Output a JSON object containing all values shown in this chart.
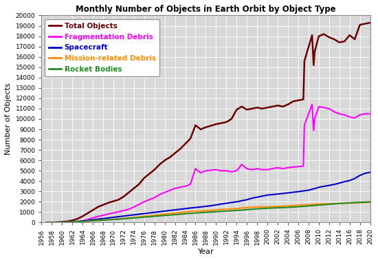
{
  "title": "Monthly Number of Objects in Earth Orbit by Object Type",
  "xlabel": "Year",
  "ylabel": "Number of Objects",
  "xlim": [
    1956,
    2020
  ],
  "ylim": [
    0,
    20000
  ],
  "yticks": [
    0,
    1000,
    2000,
    3000,
    4000,
    5000,
    6000,
    7000,
    8000,
    9000,
    10000,
    11000,
    12000,
    13000,
    14000,
    15000,
    16000,
    17000,
    18000,
    19000,
    20000
  ],
  "xticks": [
    1956,
    1958,
    1960,
    1962,
    1964,
    1966,
    1968,
    1970,
    1972,
    1974,
    1976,
    1978,
    1980,
    1982,
    1984,
    1986,
    1988,
    1990,
    1992,
    1994,
    1996,
    1998,
    2000,
    2002,
    2004,
    2006,
    2008,
    2010,
    2012,
    2014,
    2016,
    2018,
    2020
  ],
  "series": {
    "Total Objects": {
      "color": "#6B0000",
      "linewidth": 1.8,
      "data": [
        [
          1957,
          0
        ],
        [
          1958,
          5
        ],
        [
          1959,
          30
        ],
        [
          1960,
          60
        ],
        [
          1961,
          100
        ],
        [
          1962,
          200
        ],
        [
          1963,
          350
        ],
        [
          1964,
          600
        ],
        [
          1965,
          900
        ],
        [
          1966,
          1200
        ],
        [
          1967,
          1500
        ],
        [
          1968,
          1700
        ],
        [
          1969,
          1900
        ],
        [
          1970,
          2050
        ],
        [
          1971,
          2200
        ],
        [
          1972,
          2500
        ],
        [
          1973,
          2900
        ],
        [
          1974,
          3300
        ],
        [
          1975,
          3700
        ],
        [
          1976,
          4300
        ],
        [
          1977,
          4700
        ],
        [
          1978,
          5100
        ],
        [
          1979,
          5600
        ],
        [
          1980,
          6000
        ],
        [
          1981,
          6300
        ],
        [
          1982,
          6700
        ],
        [
          1983,
          7100
        ],
        [
          1984,
          7600
        ],
        [
          1985,
          8100
        ],
        [
          1986,
          9400
        ],
        [
          1987,
          9000
        ],
        [
          1988,
          9200
        ],
        [
          1989,
          9350
        ],
        [
          1990,
          9500
        ],
        [
          1991,
          9600
        ],
        [
          1992,
          9700
        ],
        [
          1993,
          10000
        ],
        [
          1994,
          10900
        ],
        [
          1995,
          11200
        ],
        [
          1996,
          10900
        ],
        [
          1997,
          11000
        ],
        [
          1998,
          11100
        ],
        [
          1999,
          11000
        ],
        [
          2000,
          11100
        ],
        [
          2001,
          11200
        ],
        [
          2002,
          11300
        ],
        [
          2003,
          11200
        ],
        [
          2004,
          11400
        ],
        [
          2005,
          11700
        ],
        [
          2006,
          11800
        ],
        [
          2007,
          11900
        ],
        [
          2007.2,
          15600
        ],
        [
          2008.7,
          18100
        ],
        [
          2009.0,
          15200
        ],
        [
          2009.2,
          16500
        ],
        [
          2010,
          18000
        ],
        [
          2011,
          18200
        ],
        [
          2012,
          17900
        ],
        [
          2013,
          17700
        ],
        [
          2014,
          17400
        ],
        [
          2015,
          17500
        ],
        [
          2016,
          18100
        ],
        [
          2017,
          17700
        ],
        [
          2018,
          19100
        ],
        [
          2019,
          19200
        ],
        [
          2020,
          19300
        ]
      ]
    },
    "Fragmentation Debris": {
      "color": "#FF00FF",
      "linewidth": 1.5,
      "data": [
        [
          1957,
          0
        ],
        [
          1958,
          0
        ],
        [
          1959,
          0
        ],
        [
          1960,
          0
        ],
        [
          1961,
          5
        ],
        [
          1962,
          30
        ],
        [
          1963,
          80
        ],
        [
          1964,
          150
        ],
        [
          1965,
          280
        ],
        [
          1966,
          450
        ],
        [
          1967,
          580
        ],
        [
          1968,
          700
        ],
        [
          1969,
          820
        ],
        [
          1970,
          930
        ],
        [
          1971,
          1030
        ],
        [
          1972,
          1150
        ],
        [
          1973,
          1280
        ],
        [
          1974,
          1500
        ],
        [
          1975,
          1750
        ],
        [
          1976,
          2000
        ],
        [
          1977,
          2200
        ],
        [
          1978,
          2400
        ],
        [
          1979,
          2700
        ],
        [
          1980,
          2900
        ],
        [
          1981,
          3100
        ],
        [
          1982,
          3300
        ],
        [
          1983,
          3400
        ],
        [
          1984,
          3500
        ],
        [
          1985,
          3700
        ],
        [
          1986,
          5200
        ],
        [
          1987,
          4800
        ],
        [
          1988,
          5000
        ],
        [
          1989,
          5050
        ],
        [
          1990,
          5100
        ],
        [
          1991,
          5000
        ],
        [
          1992,
          5000
        ],
        [
          1993,
          4900
        ],
        [
          1994,
          5000
        ],
        [
          1995,
          5600
        ],
        [
          1996,
          5200
        ],
        [
          1997,
          5100
        ],
        [
          1998,
          5200
        ],
        [
          1999,
          5100
        ],
        [
          2000,
          5100
        ],
        [
          2001,
          5200
        ],
        [
          2002,
          5300
        ],
        [
          2003,
          5200
        ],
        [
          2004,
          5300
        ],
        [
          2005,
          5350
        ],
        [
          2006,
          5400
        ],
        [
          2007,
          5450
        ],
        [
          2007.2,
          9400
        ],
        [
          2008.7,
          11400
        ],
        [
          2009.0,
          8900
        ],
        [
          2009.2,
          10000
        ],
        [
          2010,
          11200
        ],
        [
          2011,
          11100
        ],
        [
          2012,
          11000
        ],
        [
          2013,
          10700
        ],
        [
          2014,
          10500
        ],
        [
          2015,
          10400
        ],
        [
          2016,
          10200
        ],
        [
          2017,
          10100
        ],
        [
          2018,
          10400
        ],
        [
          2019,
          10500
        ],
        [
          2020,
          10500
        ]
      ]
    },
    "Spacecraft": {
      "color": "#0000CC",
      "linewidth": 1.5,
      "data": [
        [
          1957,
          0
        ],
        [
          1958,
          2
        ],
        [
          1959,
          5
        ],
        [
          1960,
          15
        ],
        [
          1961,
          30
        ],
        [
          1962,
          60
        ],
        [
          1963,
          100
        ],
        [
          1964,
          150
        ],
        [
          1965,
          200
        ],
        [
          1966,
          260
        ],
        [
          1967,
          320
        ],
        [
          1968,
          380
        ],
        [
          1969,
          440
        ],
        [
          1970,
          500
        ],
        [
          1971,
          560
        ],
        [
          1972,
          620
        ],
        [
          1973,
          680
        ],
        [
          1974,
          740
        ],
        [
          1975,
          800
        ],
        [
          1976,
          860
        ],
        [
          1977,
          920
        ],
        [
          1978,
          980
        ],
        [
          1979,
          1040
        ],
        [
          1980,
          1100
        ],
        [
          1981,
          1160
        ],
        [
          1982,
          1220
        ],
        [
          1983,
          1280
        ],
        [
          1984,
          1340
        ],
        [
          1985,
          1400
        ],
        [
          1986,
          1450
        ],
        [
          1987,
          1500
        ],
        [
          1988,
          1560
        ],
        [
          1989,
          1620
        ],
        [
          1990,
          1700
        ],
        [
          1991,
          1780
        ],
        [
          1992,
          1860
        ],
        [
          1993,
          1930
        ],
        [
          1994,
          2000
        ],
        [
          1995,
          2100
        ],
        [
          1996,
          2200
        ],
        [
          1997,
          2350
        ],
        [
          1998,
          2450
        ],
        [
          1999,
          2550
        ],
        [
          2000,
          2650
        ],
        [
          2001,
          2700
        ],
        [
          2002,
          2750
        ],
        [
          2003,
          2800
        ],
        [
          2004,
          2860
        ],
        [
          2005,
          2920
        ],
        [
          2006,
          2980
        ],
        [
          2007,
          3050
        ],
        [
          2008,
          3120
        ],
        [
          2009,
          3250
        ],
        [
          2010,
          3400
        ],
        [
          2011,
          3500
        ],
        [
          2012,
          3580
        ],
        [
          2013,
          3680
        ],
        [
          2014,
          3800
        ],
        [
          2015,
          3950
        ],
        [
          2016,
          4050
        ],
        [
          2017,
          4250
        ],
        [
          2018,
          4550
        ],
        [
          2019,
          4750
        ],
        [
          2020,
          4850
        ]
      ]
    },
    "Mission-related Debris": {
      "color": "#FF8C00",
      "linewidth": 1.5,
      "data": [
        [
          1957,
          0
        ],
        [
          1958,
          1
        ],
        [
          1959,
          5
        ],
        [
          1960,
          15
        ],
        [
          1961,
          25
        ],
        [
          1962,
          40
        ],
        [
          1963,
          60
        ],
        [
          1964,
          90
        ],
        [
          1965,
          130
        ],
        [
          1966,
          170
        ],
        [
          1967,
          210
        ],
        [
          1968,
          250
        ],
        [
          1969,
          285
        ],
        [
          1970,
          315
        ],
        [
          1971,
          355
        ],
        [
          1972,
          395
        ],
        [
          1973,
          435
        ],
        [
          1974,
          485
        ],
        [
          1975,
          535
        ],
        [
          1976,
          590
        ],
        [
          1977,
          640
        ],
        [
          1978,
          700
        ],
        [
          1979,
          755
        ],
        [
          1980,
          815
        ],
        [
          1981,
          865
        ],
        [
          1982,
          915
        ],
        [
          1983,
          965
        ],
        [
          1984,
          1015
        ],
        [
          1985,
          1060
        ],
        [
          1986,
          1100
        ],
        [
          1987,
          1120
        ],
        [
          1988,
          1140
        ],
        [
          1989,
          1170
        ],
        [
          1990,
          1220
        ],
        [
          1991,
          1250
        ],
        [
          1992,
          1280
        ],
        [
          1993,
          1310
        ],
        [
          1994,
          1340
        ],
        [
          1995,
          1400
        ],
        [
          1996,
          1440
        ],
        [
          1997,
          1480
        ],
        [
          1998,
          1510
        ],
        [
          1999,
          1510
        ],
        [
          2000,
          1520
        ],
        [
          2001,
          1530
        ],
        [
          2002,
          1560
        ],
        [
          2003,
          1580
        ],
        [
          2004,
          1600
        ],
        [
          2005,
          1640
        ],
        [
          2006,
          1670
        ],
        [
          2007,
          1700
        ],
        [
          2008,
          1720
        ],
        [
          2009,
          1750
        ],
        [
          2010,
          1775
        ],
        [
          2011,
          1795
        ],
        [
          2012,
          1805
        ],
        [
          2013,
          1815
        ],
        [
          2014,
          1830
        ],
        [
          2015,
          1850
        ],
        [
          2016,
          1870
        ],
        [
          2017,
          1890
        ],
        [
          2018,
          1910
        ],
        [
          2019,
          1930
        ],
        [
          2020,
          1950
        ]
      ]
    },
    "Rocket Bodies": {
      "color": "#228B22",
      "linewidth": 1.5,
      "data": [
        [
          1957,
          0
        ],
        [
          1958,
          2
        ],
        [
          1959,
          10
        ],
        [
          1960,
          25
        ],
        [
          1961,
          40
        ],
        [
          1962,
          60
        ],
        [
          1963,
          80
        ],
        [
          1964,
          110
        ],
        [
          1965,
          140
        ],
        [
          1966,
          170
        ],
        [
          1967,
          200
        ],
        [
          1968,
          230
        ],
        [
          1969,
          260
        ],
        [
          1970,
          290
        ],
        [
          1971,
          320
        ],
        [
          1972,
          360
        ],
        [
          1973,
          400
        ],
        [
          1974,
          440
        ],
        [
          1975,
          480
        ],
        [
          1976,
          520
        ],
        [
          1977,
          560
        ],
        [
          1978,
          600
        ],
        [
          1979,
          640
        ],
        [
          1980,
          680
        ],
        [
          1981,
          720
        ],
        [
          1982,
          760
        ],
        [
          1983,
          800
        ],
        [
          1984,
          840
        ],
        [
          1985,
          880
        ],
        [
          1986,
          920
        ],
        [
          1987,
          950
        ],
        [
          1988,
          980
        ],
        [
          1989,
          1010
        ],
        [
          1990,
          1040
        ],
        [
          1991,
          1070
        ],
        [
          1992,
          1100
        ],
        [
          1993,
          1130
        ],
        [
          1994,
          1160
        ],
        [
          1995,
          1200
        ],
        [
          1996,
          1240
        ],
        [
          1997,
          1280
        ],
        [
          1998,
          1320
        ],
        [
          1999,
          1350
        ],
        [
          2000,
          1380
        ],
        [
          2001,
          1400
        ],
        [
          2002,
          1420
        ],
        [
          2003,
          1440
        ],
        [
          2004,
          1460
        ],
        [
          2005,
          1490
        ],
        [
          2006,
          1520
        ],
        [
          2007,
          1560
        ],
        [
          2008,
          1600
        ],
        [
          2009,
          1640
        ],
        [
          2010,
          1680
        ],
        [
          2011,
          1720
        ],
        [
          2012,
          1760
        ],
        [
          2013,
          1800
        ],
        [
          2014,
          1840
        ],
        [
          2015,
          1870
        ],
        [
          2016,
          1900
        ],
        [
          2017,
          1930
        ],
        [
          2018,
          1950
        ],
        [
          2019,
          1970
        ],
        [
          2020,
          1990
        ]
      ]
    }
  },
  "series_order": [
    "Total Objects",
    "Fragmentation Debris",
    "Spacecraft",
    "Mission-related Debris",
    "Rocket Bodies"
  ],
  "background_color": "#FFFFFF",
  "plot_bg_color": "#D8D8D8",
  "grid_color": "#FFFFFF",
  "title_fontsize": 8.5,
  "axis_label_fontsize": 8,
  "tick_fontsize": 6.5,
  "legend_fontsize": 7.5
}
